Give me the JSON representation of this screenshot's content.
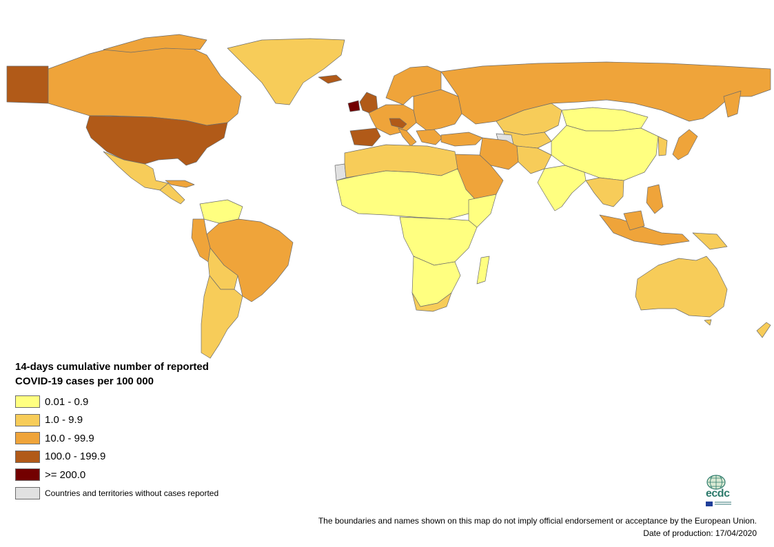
{
  "colors": {
    "c1": "#ffff80",
    "c2": "#f7cc59",
    "c3": "#efa43a",
    "c4": "#b15a18",
    "c5": "#730000",
    "none": "#e1e1e1",
    "outline": "#6b6b6b",
    "logo_text": "#2c7a6b"
  },
  "legend": {
    "title": "14-days cumulative number of reported COVID-19 cases per 100 000",
    "items": [
      {
        "label": "0.01 - 0.9",
        "color": "#ffff80"
      },
      {
        "label": "1.0 - 9.9",
        "color": "#f7cc59"
      },
      {
        "label": "10.0 - 99.9",
        "color": "#efa43a"
      },
      {
        "label": "100.0 - 199.9",
        "color": "#b15a18"
      },
      {
        "label": ">= 200.0",
        "color": "#730000"
      },
      {
        "label": "Countries and territories without cases reported",
        "color": "#e1e1e1"
      }
    ]
  },
  "disclaimer": {
    "line1": "The boundaries and names shown on this map do not imply official endorsement or acceptance by the European Union.",
    "line2": "Date of production: 17/04/2020"
  },
  "logo": {
    "text": "ecdc",
    "icon": "ecdc-globe-icon"
  }
}
